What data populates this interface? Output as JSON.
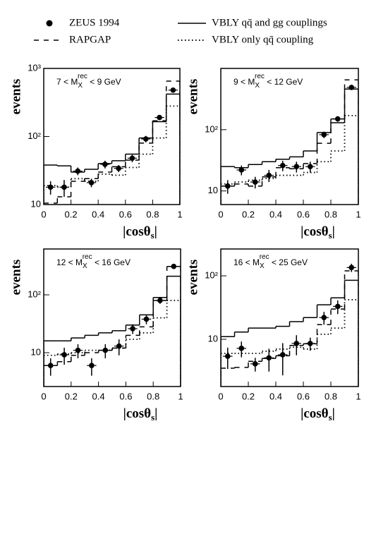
{
  "chart_data": [
    {
      "type": "histogram",
      "title": [
        "7 < M",
        "X",
        "rec",
        " < 9 GeV"
      ],
      "xlabel": [
        "|cosθ",
        "s",
        "|"
      ],
      "ylabel": "events",
      "log_y": true,
      "bins": [
        0,
        0.1,
        0.2,
        0.3,
        0.4,
        0.5,
        0.6,
        0.7,
        0.8,
        0.9,
        1
      ],
      "xlim": [
        0,
        1
      ],
      "xticks": [
        0,
        0.2,
        0.4,
        0.6,
        0.8,
        1
      ],
      "ylim": [
        10,
        1000
      ],
      "yticks": [
        {
          "value": 10,
          "label": "10"
        },
        {
          "value": 100,
          "label": "10²"
        },
        {
          "value": 1000,
          "label": "10³"
        }
      ],
      "series": [
        {
          "name": "ZEUS 1994",
          "style": "points",
          "color": "#000000",
          "values": [
            18,
            18,
            31,
            21,
            39,
            34,
            48,
            92,
            190,
            480
          ],
          "errors": [
            4,
            5,
            4,
            3,
            5,
            4,
            6,
            10,
            15,
            30
          ]
        },
        {
          "name": "RAPGAP",
          "style": "dashed",
          "color": "#000000",
          "values": [
            10.5,
            13,
            22,
            24,
            30,
            36,
            45,
            80,
            170,
            650
          ]
        },
        {
          "name": "VBLY qq̄ and gg couplings",
          "style": "solid",
          "color": "#000000",
          "values": [
            38,
            37,
            30,
            33,
            40,
            44,
            55,
            95,
            165,
            420
          ]
        },
        {
          "name": "VBLY only qq̄ coupling",
          "style": "dotted",
          "color": "#000000",
          "values": [
            19,
            18,
            24,
            22,
            28,
            27,
            35,
            55,
            95,
            280
          ]
        }
      ]
    },
    {
      "type": "histogram",
      "title": [
        "9 < M",
        "X",
        "rec",
        " < 12 GeV"
      ],
      "xlabel": [
        "|cosθ",
        "s",
        "|"
      ],
      "ylabel": "events",
      "log_y": true,
      "bins": [
        0,
        0.1,
        0.2,
        0.3,
        0.4,
        0.5,
        0.6,
        0.7,
        0.8,
        0.9,
        1
      ],
      "xlim": [
        0,
        1
      ],
      "xticks": [
        0,
        0.2,
        0.4,
        0.6,
        0.8,
        1
      ],
      "ylim": [
        6,
        1000
      ],
      "yticks": [
        {
          "value": 10,
          "label": "10"
        },
        {
          "value": 100,
          "label": "10²"
        }
      ],
      "series": [
        {
          "name": "ZEUS 1994",
          "style": "points",
          "color": "#000000",
          "values": [
            12,
            22,
            14,
            18,
            26,
            25,
            25,
            83,
            150,
            490
          ],
          "errors": [
            3,
            4,
            3,
            4,
            5,
            5,
            5,
            10,
            15,
            30
          ]
        },
        {
          "name": "RAPGAP",
          "style": "dashed",
          "color": "#000000",
          "values": [
            12,
            13,
            12,
            17,
            24,
            23,
            28,
            60,
            150,
            650
          ]
        },
        {
          "name": "VBLY qq̄ and gg couplings",
          "style": "solid",
          "color": "#000000",
          "values": [
            25,
            24,
            27,
            30,
            33,
            36,
            45,
            90,
            130,
            460
          ]
        },
        {
          "name": "VBLY only qq̄ coupling",
          "style": "dotted",
          "color": "#000000",
          "values": [
            13,
            14,
            15,
            16,
            18,
            18,
            20,
            30,
            45,
            170
          ]
        }
      ]
    },
    {
      "type": "histogram",
      "title": [
        "12 < M",
        "X",
        "rec",
        " < 16 GeV"
      ],
      "xlabel": [
        "|cosθ",
        "s",
        "|"
      ],
      "ylabel": "events",
      "log_y": true,
      "bins": [
        0,
        0.1,
        0.2,
        0.3,
        0.4,
        0.5,
        0.6,
        0.7,
        0.8,
        0.9,
        1
      ],
      "xlim": [
        0,
        1
      ],
      "xticks": [
        0,
        0.2,
        0.4,
        0.6,
        0.8,
        1
      ],
      "ylim": [
        2.6,
        620
      ],
      "yticks": [
        {
          "value": 10,
          "label": "10"
        },
        {
          "value": 100,
          "label": "10²"
        }
      ],
      "series": [
        {
          "name": "ZEUS 1994",
          "style": "points",
          "color": "#000000",
          "values": [
            6,
            9.2,
            11,
            6,
            11,
            13,
            26,
            38,
            80,
            310
          ],
          "errors": [
            2,
            3,
            3,
            2,
            3,
            4,
            5,
            7,
            10,
            25
          ]
        },
        {
          "name": "RAPGAP",
          "style": "dashed",
          "color": "#000000",
          "values": [
            6,
            7,
            9,
            10,
            11,
            12,
            20,
            28,
            80,
            310
          ]
        },
        {
          "name": "VBLY qq̄ and gg couplings",
          "style": "solid",
          "color": "#000000",
          "values": [
            16,
            16,
            18,
            20,
            22,
            24,
            30,
            45,
            90,
            210
          ]
        },
        {
          "name": "VBLY only qq̄ coupling",
          "style": "dotted",
          "color": "#000000",
          "values": [
            9,
            9.5,
            10,
            11,
            11,
            12,
            17,
            22,
            40,
            80
          ]
        }
      ]
    },
    {
      "type": "histogram",
      "title": [
        "16 < M",
        "X",
        "rec",
        " < 25 GeV"
      ],
      "xlabel": [
        "|cosθ",
        "s",
        "|"
      ],
      "ylabel": "events",
      "log_y": true,
      "bins": [
        0,
        0.1,
        0.2,
        0.3,
        0.4,
        0.5,
        0.6,
        0.7,
        0.8,
        0.9,
        1
      ],
      "xlim": [
        0,
        1
      ],
      "xticks": [
        0,
        0.2,
        0.4,
        0.6,
        0.8,
        1
      ],
      "ylim": [
        1.8,
        265
      ],
      "yticks": [
        {
          "value": 10,
          "label": "10"
        },
        {
          "value": 100,
          "label": "10²"
        }
      ],
      "series": [
        {
          "name": "ZEUS 1994",
          "style": "points",
          "color": "#000000",
          "values": [
            5.4,
            7.2,
            4.1,
            5.1,
            5.7,
            8.6,
            8.6,
            22,
            33,
            135
          ],
          "errors": [
            2,
            2,
            1,
            2,
            3,
            3,
            2,
            5,
            8,
            20
          ]
        },
        {
          "name": "RAPGAP",
          "style": "dashed",
          "color": "#000000",
          "values": [
            3.5,
            3.6,
            4.5,
            5,
            5.5,
            8,
            8.5,
            17,
            30,
            120
          ]
        },
        {
          "name": "VBLY qq̄ and gg couplings",
          "style": "solid",
          "color": "#000000",
          "values": [
            11,
            13,
            15,
            15,
            16,
            19,
            22,
            35,
            45,
            85
          ]
        },
        {
          "name": "VBLY only qq̄ coupling",
          "style": "dotted",
          "color": "#000000",
          "values": [
            6,
            6,
            6,
            6.5,
            7,
            7.5,
            7,
            12,
            15,
            42
          ]
        }
      ]
    }
  ]
}
